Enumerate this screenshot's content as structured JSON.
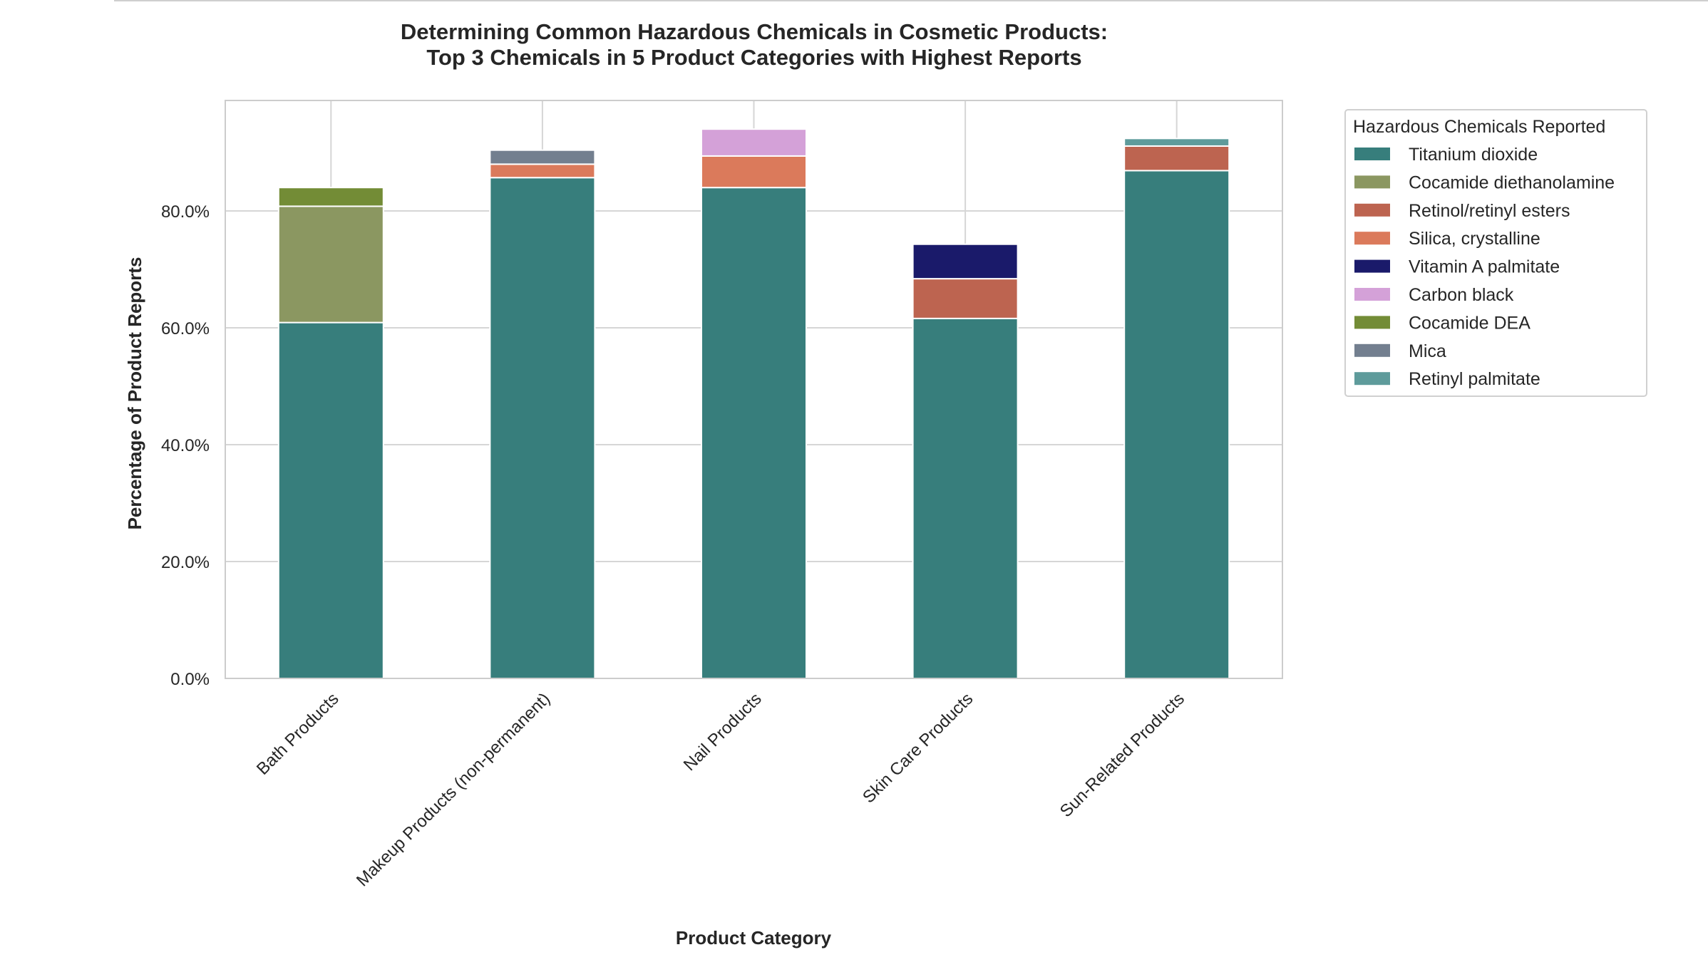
{
  "chart_data": {
    "type": "bar",
    "stacked": true,
    "title": "Determining Common Hazardous Chemicals in Cosmetic Products:",
    "subtitle": "Top 3 Chemicals in 5 Product Categories with Highest Reports",
    "xlabel": "Product Category",
    "ylabel": "Percentage of Product Reports",
    "ylim": [
      0,
      98.9
    ],
    "yticks": [
      0,
      20,
      40,
      60,
      80
    ],
    "ytick_labels": [
      "0.0%",
      "20.0%",
      "40.0%",
      "60.0%",
      "80.0%"
    ],
    "grid": true,
    "categories": [
      "Bath Products",
      "Makeup Products (non-permanent)",
      "Nail Products",
      "Skin Care Products",
      "Sun-Related Products"
    ],
    "legend_title": "Hazardous Chemicals Reported",
    "legend_position": "outside-top-right",
    "series": [
      {
        "name": "Titanium dioxide",
        "color": "#377e7c",
        "values": [
          60.9,
          85.7,
          84.0,
          61.6,
          86.9
        ]
      },
      {
        "name": "Cocamide diethanolamine",
        "color": "#8b9761",
        "values": [
          19.9,
          0,
          0,
          0,
          0
        ]
      },
      {
        "name": "Retinol/retinyl esters",
        "color": "#bd6450",
        "values": [
          0,
          0,
          0,
          6.8,
          4.2
        ]
      },
      {
        "name": "Silica, crystalline",
        "color": "#db7a5b",
        "values": [
          0,
          2.3,
          5.4,
          0,
          0
        ]
      },
      {
        "name": "Vitamin A palmitate",
        "color": "#1a1a6a",
        "values": [
          0,
          0,
          0,
          5.9,
          0
        ]
      },
      {
        "name": "Carbon black",
        "color": "#d4a1d8",
        "values": [
          0,
          0,
          4.6,
          0,
          0
        ]
      },
      {
        "name": "Cocamide DEA",
        "color": "#738c36",
        "values": [
          3.2,
          0,
          0,
          0,
          0
        ]
      },
      {
        "name": "Mica",
        "color": "#737f8f",
        "values": [
          0,
          2.4,
          0,
          0,
          0
        ]
      },
      {
        "name": "Retinyl palmitate",
        "color": "#5e9b9b",
        "values": [
          0,
          0,
          0,
          0,
          1.3
        ]
      }
    ]
  }
}
